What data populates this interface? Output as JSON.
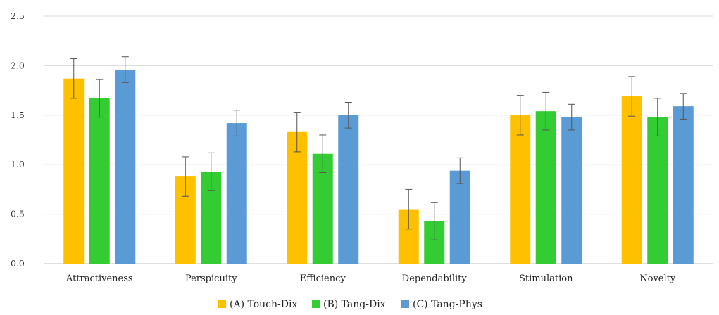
{
  "chart_data": {
    "type": "bar",
    "categories": [
      "Attractiveness",
      "Perspicuity",
      "Efficiency",
      "Dependability",
      "Stimulation",
      "Novelty"
    ],
    "series": [
      {
        "name": "(A) Touch-Dix",
        "color": "#FFC000",
        "values": [
          1.87,
          0.88,
          1.33,
          0.55,
          1.5,
          1.69
        ],
        "error": [
          0.2,
          0.2,
          0.2,
          0.2,
          0.2,
          0.2
        ]
      },
      {
        "name": "(B) Tang-Dix",
        "color": "#33CC33",
        "values": [
          1.67,
          0.93,
          1.11,
          0.43,
          1.54,
          1.48
        ],
        "error": [
          0.19,
          0.19,
          0.19,
          0.19,
          0.19,
          0.19
        ]
      },
      {
        "name": "(C) Tang-Phys",
        "color": "#5B9BD5",
        "values": [
          1.96,
          1.42,
          1.5,
          0.94,
          1.48,
          1.59
        ],
        "error": [
          0.13,
          0.13,
          0.13,
          0.13,
          0.13,
          0.13
        ]
      }
    ],
    "ylim": [
      0,
      2.5
    ],
    "yticks": [
      "0.0",
      "0.5",
      "1.0",
      "1.5",
      "2.0",
      "2.5"
    ],
    "grid": true,
    "legend_position": "bottom-center",
    "title": "",
    "xlabel": "",
    "ylabel": ""
  }
}
